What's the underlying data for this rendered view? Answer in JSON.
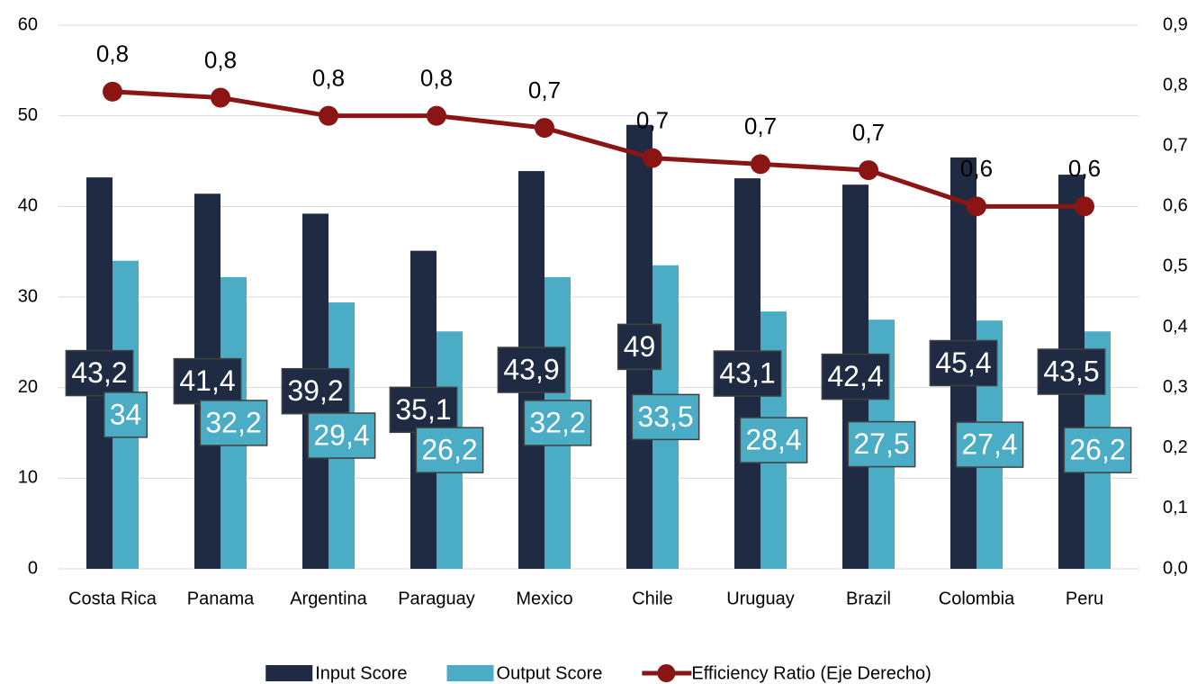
{
  "chart_data": {
    "type": "bar_line",
    "categories": [
      "Costa Rica",
      "Panama",
      "Argentina",
      "Paraguay",
      "Mexico",
      "Chile",
      "Uruguay",
      "Brazil",
      "Colombia",
      "Peru"
    ],
    "series": [
      {
        "name": "Input Score",
        "type": "bar",
        "color": "#1f2b42",
        "values": [
          43.2,
          41.4,
          39.2,
          35.1,
          43.9,
          49,
          43.1,
          42.4,
          45.4,
          43.5
        ],
        "value_labels": [
          "43,2",
          "41,4",
          "39,2",
          "35,1",
          "43,9",
          "49",
          "43,1",
          "42,4",
          "45,4",
          "43,5"
        ]
      },
      {
        "name": "Output Score",
        "type": "bar",
        "color": "#4bacc6",
        "values": [
          34,
          32.2,
          29.4,
          26.2,
          32.2,
          33.5,
          28.4,
          27.5,
          27.4,
          26.2
        ],
        "value_labels": [
          "34",
          "32,2",
          "29,4",
          "26,2",
          "32,2",
          "33,5",
          "28,4",
          "27,5",
          "27,4",
          "26,2"
        ]
      },
      {
        "name": "Efficiency Ratio (Eje Derecho)",
        "type": "line",
        "axis": "y2",
        "color": "#8b1414",
        "values": [
          0.79,
          0.78,
          0.75,
          0.75,
          0.73,
          0.68,
          0.67,
          0.66,
          0.6,
          0.6
        ],
        "value_labels": [
          "0,8",
          "0,8",
          "0,8",
          "0,8",
          "0,7",
          "0,7",
          "0,7",
          "0,7",
          "0,6",
          "0,6"
        ]
      }
    ],
    "ylim": [
      0,
      60
    ],
    "yticks": [
      0,
      10,
      20,
      30,
      40,
      50,
      60
    ],
    "y2lim": [
      0,
      0.9
    ],
    "y2ticks": [
      {
        "value": 0,
        "label": "0,0"
      },
      {
        "value": 0.1,
        "label": "0,1"
      },
      {
        "value": 0.2,
        "label": "0,2"
      },
      {
        "value": 0.3,
        "label": "0,3"
      },
      {
        "value": 0.4,
        "label": "0,4"
      },
      {
        "value": 0.5,
        "label": "0,5"
      },
      {
        "value": 0.6,
        "label": "0,6"
      },
      {
        "value": 0.7,
        "label": "0,7"
      },
      {
        "value": 0.8,
        "label": "0,8"
      },
      {
        "value": 0.9,
        "label": "0,9"
      }
    ],
    "grid": true,
    "legend": "bottom"
  }
}
